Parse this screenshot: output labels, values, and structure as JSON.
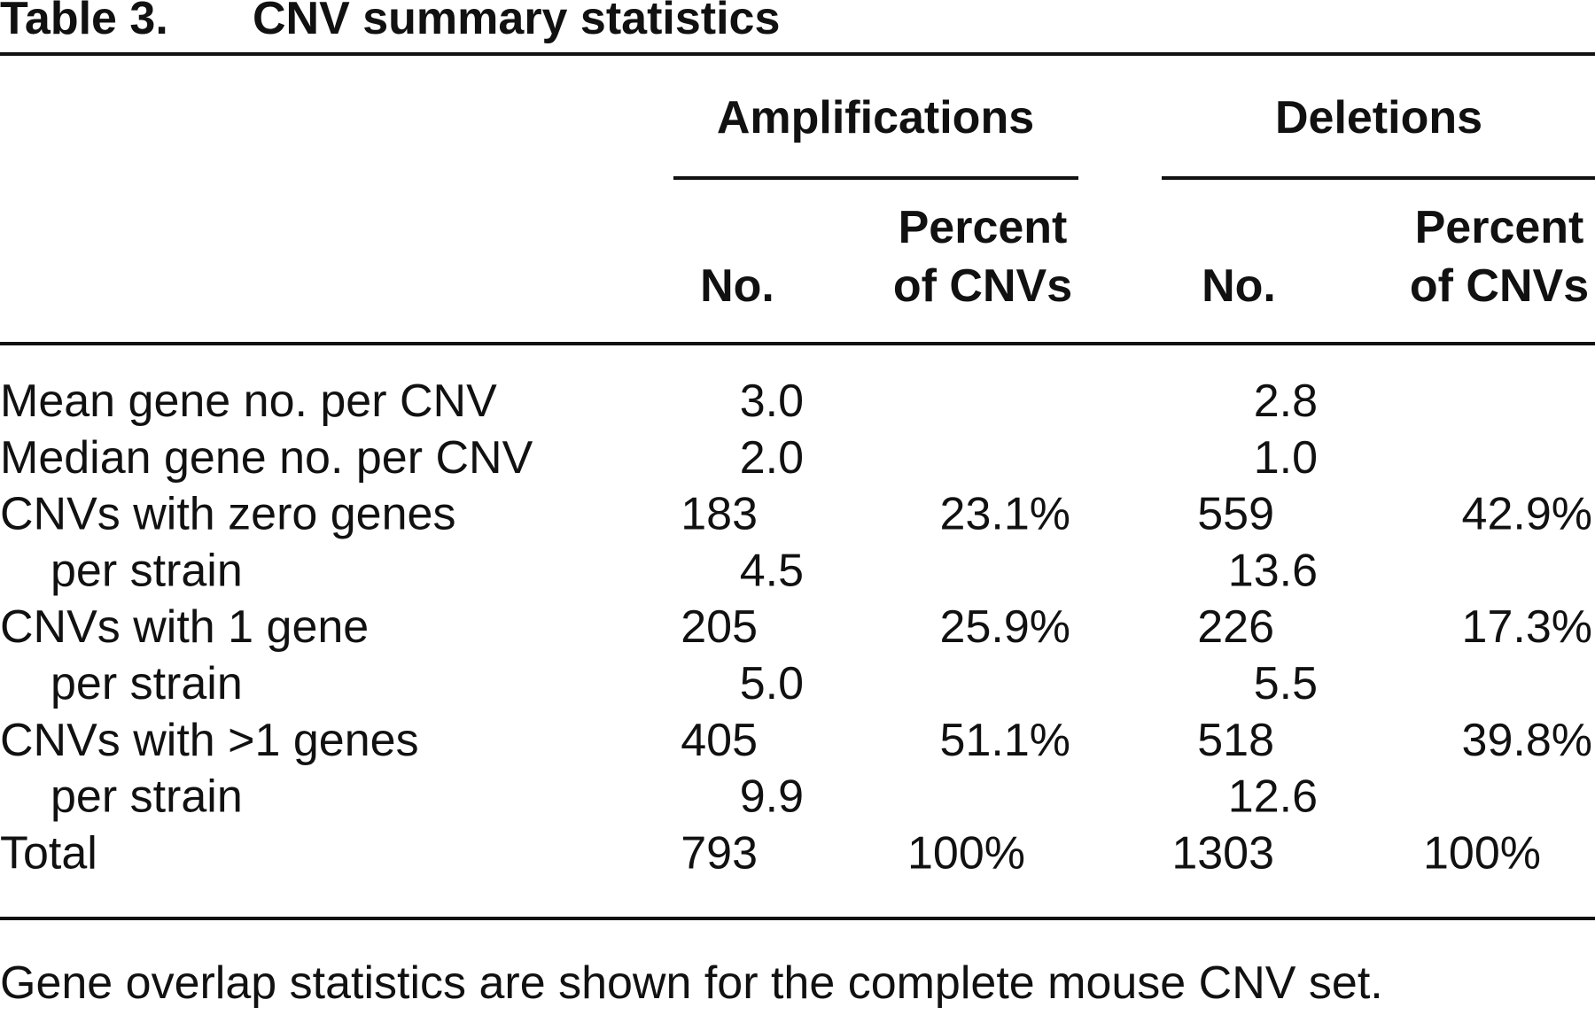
{
  "table": {
    "label": "Table 3.",
    "title": "CNV summary statistics",
    "groups": [
      "Amplifications",
      "Deletions"
    ],
    "columns": [
      [
        "No.",
        "Percent",
        "of CNVs"
      ],
      [
        "No.",
        "Percent",
        "of CNVs"
      ]
    ],
    "rows": [
      [
        "Mean gene no. per CNV",
        "3.0",
        null,
        "2.8",
        null
      ],
      [
        "Median gene no. per CNV",
        "2.0",
        null,
        "1.0",
        null
      ],
      [
        "CNVs with zero genes",
        "183",
        "23.1%",
        "559",
        "42.9%"
      ],
      [
        "per strain",
        "4.5",
        null,
        "13.6",
        null
      ],
      [
        "CNVs with 1 gene",
        "205",
        "25.9%",
        "226",
        "17.3%"
      ],
      [
        "per strain",
        "5.0",
        null,
        "5.5",
        null
      ],
      [
        "CNVs with >1 genes",
        "405",
        "51.1%",
        "518",
        "39.8%"
      ],
      [
        "per strain",
        "9.9",
        null,
        "12.6",
        null
      ],
      [
        "Total",
        "793",
        "100%",
        "1303",
        "100%"
      ]
    ],
    "footnote": "Gene overlap statistics are shown for the complete mouse CNV set."
  }
}
